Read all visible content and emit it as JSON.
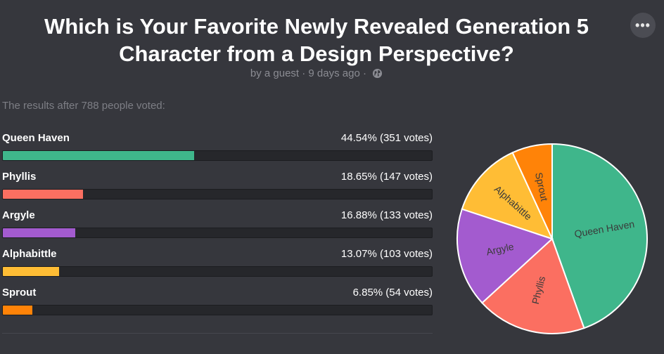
{
  "poll": {
    "title": "Which is Your Favorite Newly Revealed Generation 5 Character from a Design Perspective?",
    "meta": "by a guest · 9 days ago ·",
    "more_icon": "more-icon",
    "globe_icon": "globe-icon",
    "summary": "The results after 788 people voted:"
  },
  "options": [
    {
      "label": "Queen Haven",
      "result": "44.54% (351 votes)"
    },
    {
      "label": "Phyllis",
      "result": "18.65% (147 votes)"
    },
    {
      "label": "Argyle",
      "result": "16.88% (133 votes)"
    },
    {
      "label": "Alphabittle",
      "result": "13.07% (103 votes)"
    },
    {
      "label": "Sprout",
      "result": "6.85% (54 votes)"
    }
  ],
  "chart_data": {
    "type": "pie",
    "title": "Which is Your Favorite Newly Revealed Generation 5 Character from a Design Perspective?",
    "total_votes": 788,
    "categories": [
      "Queen Haven",
      "Phyllis",
      "Argyle",
      "Alphabittle",
      "Sprout"
    ],
    "values": [
      351,
      147,
      133,
      103,
      54
    ],
    "percentages": [
      44.54,
      18.65,
      16.88,
      13.07,
      6.85
    ],
    "colors": [
      "#3fb68b",
      "#fb6f61",
      "#a35bcf",
      "#ffbd35",
      "#ff8308"
    ]
  }
}
